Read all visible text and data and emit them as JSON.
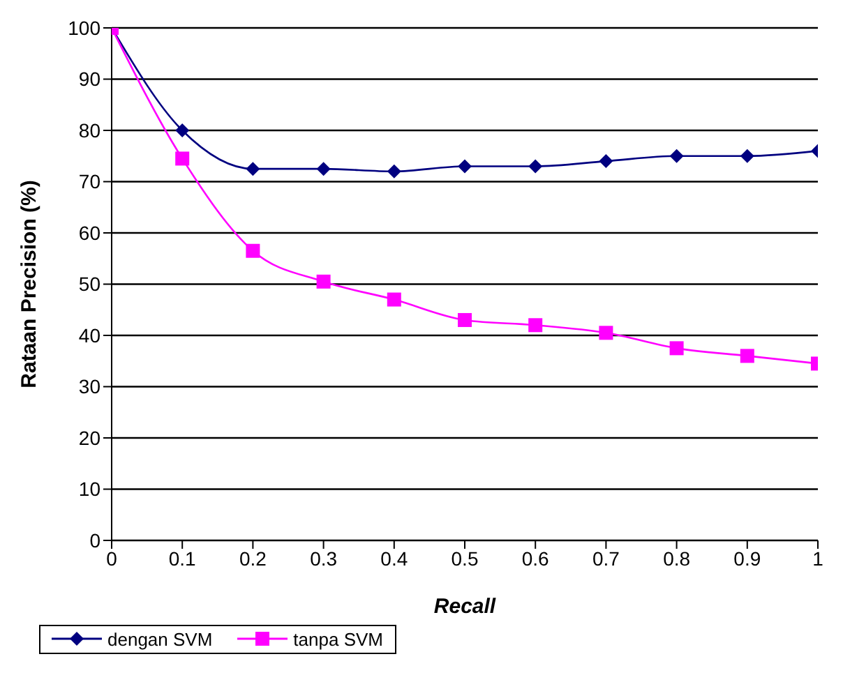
{
  "chart_data": {
    "type": "line",
    "xlabel": "Recall",
    "ylabel": "Rataan Precision (%)",
    "x": [
      0,
      0.1,
      0.2,
      0.3,
      0.4,
      0.5,
      0.6,
      0.7,
      0.8,
      0.9,
      1
    ],
    "series": [
      {
        "name": "dengan SVM",
        "color": "#000080",
        "marker": "diamond",
        "values": [
          100,
          80,
          72.5,
          72.5,
          72,
          73,
          73,
          74,
          75,
          75,
          76
        ]
      },
      {
        "name": "tanpa SVM",
        "color": "#ff00ff",
        "marker": "square",
        "values": [
          100,
          74.5,
          56.5,
          50.5,
          47,
          43,
          42,
          40.5,
          37.5,
          36,
          34.5
        ]
      }
    ],
    "xlim": [
      0,
      1
    ],
    "xticks": [
      0,
      0.1,
      0.2,
      0.3,
      0.4,
      0.5,
      0.6,
      0.7,
      0.8,
      0.9,
      1
    ],
    "ylim": [
      0,
      100
    ],
    "yticks": [
      0,
      10,
      20,
      30,
      40,
      50,
      60,
      70,
      80,
      90,
      100
    ],
    "grid": "y",
    "legend": "bottom"
  }
}
